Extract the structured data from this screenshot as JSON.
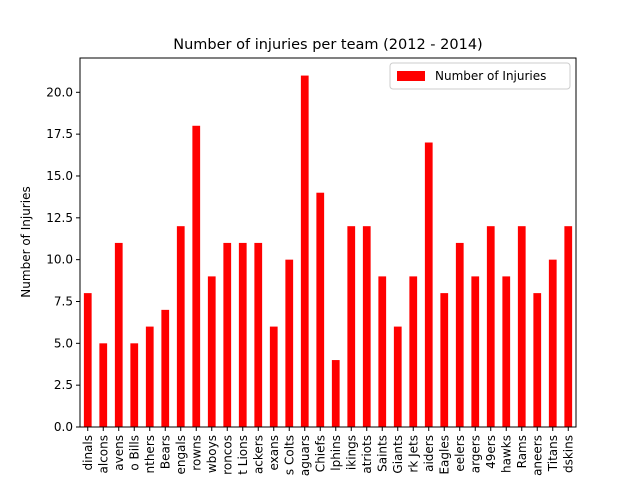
{
  "chart_data": {
    "type": "bar",
    "title": "Number of injuries per team (2012 - 2014)",
    "xlabel": "",
    "ylabel": "Number of Injuries",
    "ylim": [
      0,
      22.05
    ],
    "yticks": [
      "0.0",
      "2.5",
      "5.0",
      "7.5",
      "10.0",
      "12.5",
      "15.0",
      "17.5",
      "20.0"
    ],
    "grid": false,
    "legend_position": "top-right",
    "series_color": "#ff0000",
    "categories": [
      "dinals",
      "alcons",
      "avens",
      "o Bills",
      "nthers",
      "Bears",
      "engals",
      "rowns",
      "wboys",
      "roncos",
      "t Lions",
      "ackers",
      "exans",
      "s Colts",
      "aguars",
      "Chiefs",
      "lphins",
      "ikings",
      "atriots",
      "Saints",
      "Giants",
      "rk Jets",
      "aiders",
      "Eagles",
      "eelers",
      "argers",
      "49ers",
      "hawks",
      "Rams",
      "aneers",
      "Titans",
      "dskins"
    ],
    "series": [
      {
        "name": "Number of Injuries",
        "values": [
          8,
          5,
          11,
          5,
          6,
          7,
          12,
          18,
          9,
          11,
          11,
          11,
          6,
          10,
          21,
          14,
          4,
          12,
          12,
          9,
          6,
          9,
          17,
          8,
          11,
          9,
          12,
          9,
          12,
          8,
          10,
          12
        ]
      }
    ]
  }
}
